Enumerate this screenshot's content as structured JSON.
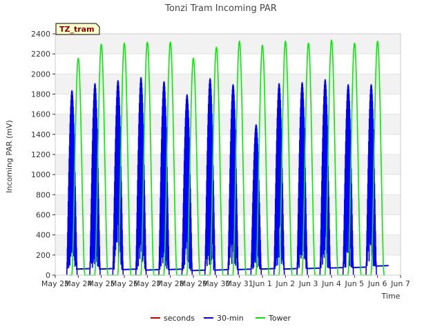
{
  "chart_data": {
    "type": "line",
    "title": "Tonzi Tram Incoming PAR",
    "xlabel": "Time",
    "ylabel": "Incoming PAR (mV)",
    "ylim": [
      0,
      2400
    ],
    "yticks": [
      0,
      200,
      400,
      600,
      800,
      1000,
      1200,
      1400,
      1600,
      1800,
      2000,
      2200,
      2400
    ],
    "xlim": [
      0,
      15
    ],
    "xtick_labels": [
      "May 23",
      "May 24",
      "May 25",
      "May 26",
      "May 27",
      "May 28",
      "May 29",
      "May 30",
      "May 31",
      "Jun 1",
      "Jun 2",
      "Jun 3",
      "Jun 4",
      "Jun 5",
      "Jun 6",
      "Jun 7"
    ],
    "badge": "TZ_tram",
    "grid": "horizontal bands",
    "legend_position": "bottom",
    "series": [
      {
        "name": "seconds",
        "color": "#cc0000",
        "values": []
      },
      {
        "name": "30-min",
        "color": "#0000ff",
        "daily_peaks": [
          1840,
          1910,
          1940,
          1970,
          1930,
          1800,
          1960,
          1900,
          1500,
          1910,
          1920,
          1950,
          1900,
          1900
        ],
        "night_baseline": [
          60,
          60,
          55,
          50,
          55,
          45,
          50,
          55,
          60,
          60,
          65,
          70,
          75,
          90
        ]
      },
      {
        "name": "Tower",
        "color": "#00ee00",
        "daily_peaks": [
          2160,
          2300,
          2310,
          2320,
          2320,
          2160,
          2270,
          2330,
          2290,
          2330,
          2310,
          2340,
          2310,
          2330
        ]
      }
    ]
  }
}
